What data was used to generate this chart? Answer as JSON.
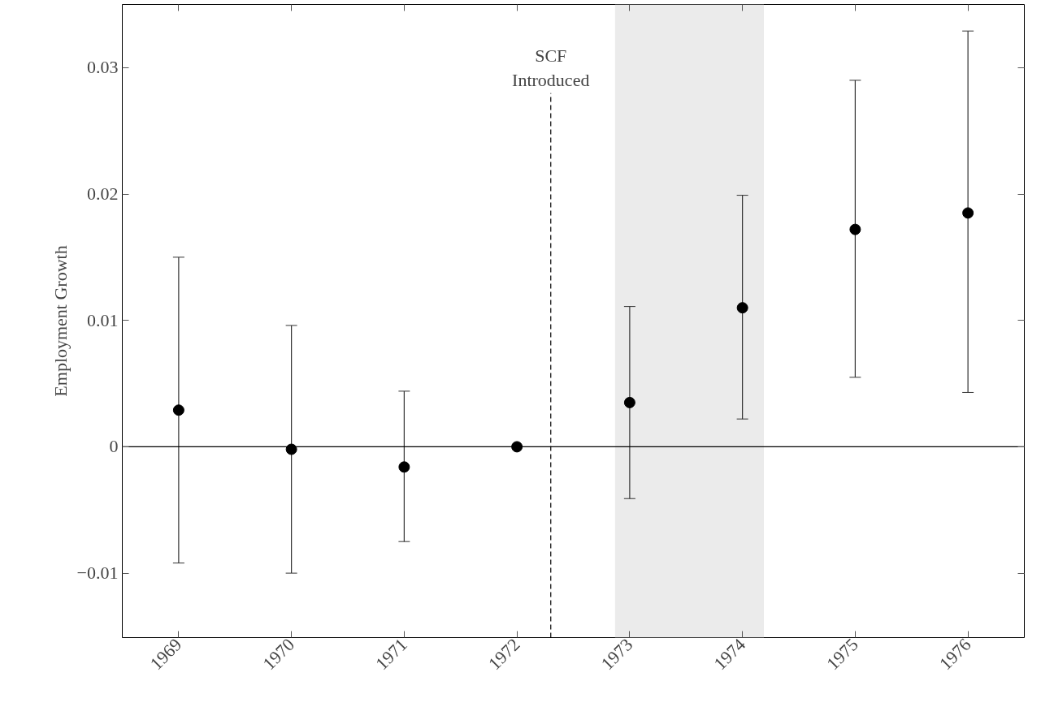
{
  "chart_data": {
    "type": "scatter",
    "ylabel": "Employment Growth",
    "x": [
      1969,
      1970,
      1971,
      1972,
      1973,
      1974,
      1975,
      1976
    ],
    "series": [
      {
        "color": "#000000",
        "values": [
          0.0029,
          -0.0002,
          -0.0016,
          0,
          0.0035,
          0.011,
          0.0172,
          0.0185
        ],
        "errors": [
          [
            -0.0092,
            0.015
          ],
          [
            -0.01,
            0.0096
          ],
          [
            -0.0075,
            0.0044
          ],
          null,
          [
            -0.0041,
            0.0111
          ],
          [
            0.0022,
            0.0199
          ],
          [
            0.0055,
            0.029
          ],
          [
            0.0043,
            0.0329
          ]
        ]
      }
    ],
    "xlim": [
      1968.5,
      1976.5
    ],
    "xticks": [
      1969,
      1970,
      1971,
      1972,
      1973,
      1974,
      1975,
      1976
    ],
    "ylim": [
      -0.0151,
      0.035
    ],
    "yticks": [
      {
        "value": -0.01,
        "label": "−0.01"
      },
      0,
      0.01,
      0.02,
      0.03
    ],
    "ref_lines": [
      {
        "axis": "y",
        "value": 0,
        "label": null,
        "color": "#000000",
        "line_style": "solid"
      },
      {
        "axis": "x",
        "value": 1972.3,
        "label": "SCF\nIntroduced",
        "color": "#000000",
        "line_style": "dashed"
      }
    ],
    "bands": [
      {
        "axis": "x",
        "from": 1972.87,
        "to": 1974.19,
        "label": null,
        "color": "#ebebeb"
      }
    ],
    "marker": "circle",
    "grid": false
  }
}
